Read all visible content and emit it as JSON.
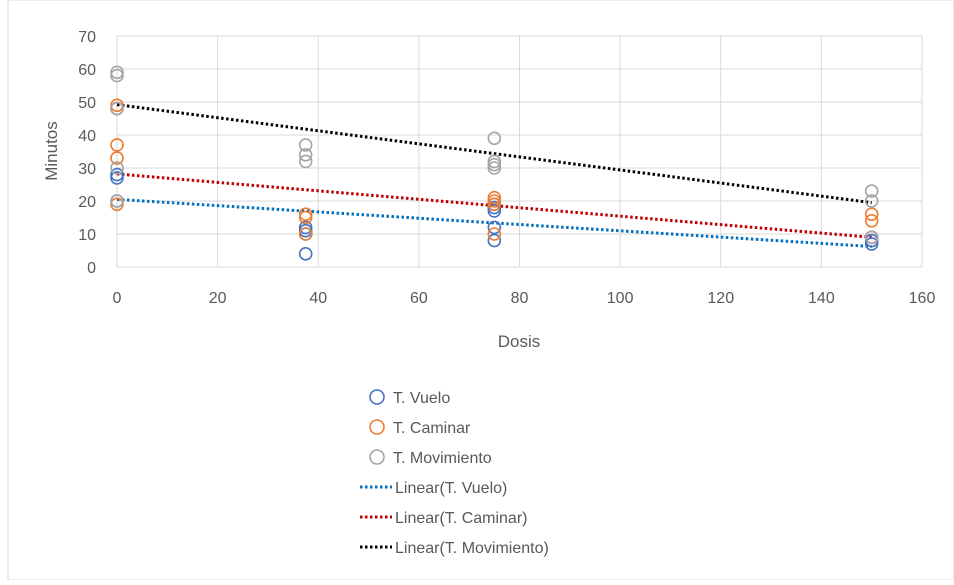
{
  "chart_data": {
    "type": "scatter",
    "xlabel": "Dosis",
    "ylabel": "Minutos",
    "xlim": [
      0,
      160
    ],
    "ylim": [
      0,
      70
    ],
    "xticks": [
      "0",
      "20",
      "40",
      "60",
      "80",
      "100",
      "120",
      "140",
      "160"
    ],
    "yticks": [
      "0",
      "10",
      "20",
      "30",
      "40",
      "50",
      "60",
      "70"
    ],
    "grid": true,
    "legend_position": "bottom",
    "series": [
      {
        "name": "T. Vuelo",
        "color": "#4472C4",
        "points": [
          [
            0,
            20
          ],
          [
            0,
            27
          ],
          [
            0,
            28
          ],
          [
            37.5,
            4
          ],
          [
            37.5,
            10
          ],
          [
            37.5,
            11
          ],
          [
            37.5,
            12
          ],
          [
            75,
            8
          ],
          [
            75,
            12
          ],
          [
            75,
            17
          ],
          [
            75,
            18
          ],
          [
            75,
            19
          ],
          [
            150,
            7
          ],
          [
            150,
            8
          ],
          [
            150,
            9
          ]
        ]
      },
      {
        "name": "T. Caminar",
        "color": "#ED7D31",
        "points": [
          [
            0,
            19
          ],
          [
            0,
            33
          ],
          [
            0,
            37
          ],
          [
            0,
            48
          ],
          [
            0,
            49
          ],
          [
            37.5,
            10
          ],
          [
            37.5,
            15
          ],
          [
            37.5,
            16
          ],
          [
            75,
            10
          ],
          [
            75,
            19
          ],
          [
            75,
            20
          ],
          [
            75,
            21
          ],
          [
            150,
            9
          ],
          [
            150,
            14
          ],
          [
            150,
            16
          ]
        ]
      },
      {
        "name": "T. Movimiento",
        "color": "#A5A5A5",
        "points": [
          [
            0,
            20
          ],
          [
            0,
            30
          ],
          [
            0,
            48
          ],
          [
            0,
            58
          ],
          [
            0,
            59
          ],
          [
            37.5,
            32
          ],
          [
            37.5,
            34
          ],
          [
            37.5,
            37
          ],
          [
            75,
            30
          ],
          [
            75,
            31
          ],
          [
            75,
            32
          ],
          [
            75,
            39
          ],
          [
            150,
            9
          ],
          [
            150,
            20
          ],
          [
            150,
            23
          ]
        ]
      }
    ],
    "trendlines": [
      {
        "name": "Linear(T. Vuelo)",
        "color": "#0070C0",
        "x": [
          0,
          150
        ],
        "y": [
          20.5,
          6.2
        ]
      },
      {
        "name": "Linear(T. Caminar)",
        "color": "#C00000",
        "x": [
          0,
          150
        ],
        "y": [
          28.2,
          9.0
        ]
      },
      {
        "name": "Linear(T. Movimiento)",
        "color": "#000000",
        "x": [
          0,
          150
        ],
        "y": [
          49.2,
          19.5
        ]
      }
    ]
  }
}
